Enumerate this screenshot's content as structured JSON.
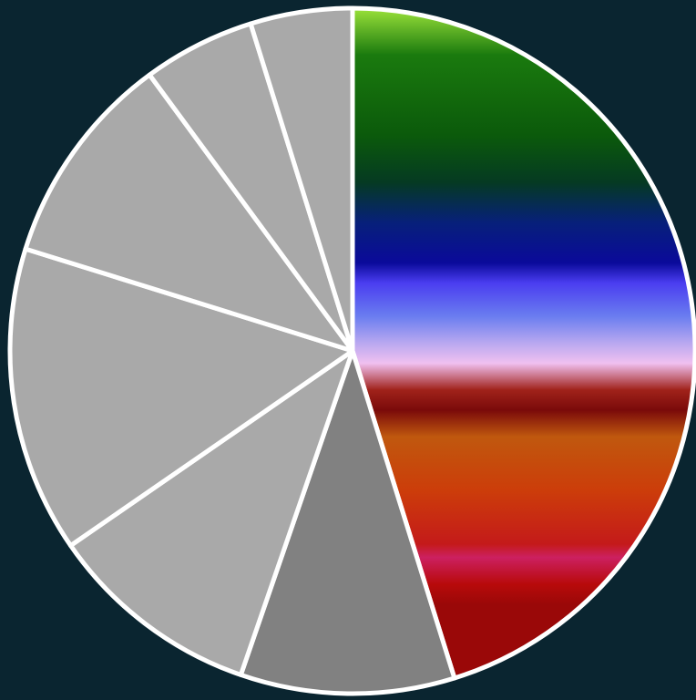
{
  "page": {
    "background": "#0a2530"
  },
  "chart_data": {
    "type": "pie",
    "title": "",
    "slice_border_color": "#ffffff",
    "start_angle_deg": 0,
    "direction": "clockwise",
    "legend": "none",
    "slices": [
      {
        "value": 47.0,
        "fill": "photo-gradient",
        "color": "#3a6f1a"
      },
      {
        "value": 10.5,
        "color": "#818181"
      },
      {
        "value": 10.5,
        "color": "#a9a9a9"
      },
      {
        "value": 15.0,
        "color": "#a9a9a9"
      },
      {
        "value": 10.5,
        "color": "#a9a9a9"
      },
      {
        "value": 5.5,
        "color": "#a9a9a9"
      },
      {
        "value": 5.0,
        "color": "#a9a9a9"
      }
    ],
    "gradient_stops": [
      {
        "offset": 0.0,
        "color": "#9be23a"
      },
      {
        "offset": 0.07,
        "color": "#1a7a0e"
      },
      {
        "offset": 0.19,
        "color": "#0b5a0b"
      },
      {
        "offset": 0.26,
        "color": "#053a22"
      },
      {
        "offset": 0.32,
        "color": "#07207a"
      },
      {
        "offset": 0.38,
        "color": "#0a0a9a"
      },
      {
        "offset": 0.41,
        "color": "#4a3df0"
      },
      {
        "offset": 0.46,
        "color": "#6a7df0"
      },
      {
        "offset": 0.5,
        "color": "#b9a8f0"
      },
      {
        "offset": 0.53,
        "color": "#f0c0f0"
      },
      {
        "offset": 0.57,
        "color": "#a0221a"
      },
      {
        "offset": 0.6,
        "color": "#7a0a0a"
      },
      {
        "offset": 0.64,
        "color": "#c0580e"
      },
      {
        "offset": 0.72,
        "color": "#cc3d0a"
      },
      {
        "offset": 0.8,
        "color": "#c41a1a"
      },
      {
        "offset": 0.82,
        "color": "#cc2060"
      },
      {
        "offset": 0.86,
        "color": "#b80a0a"
      },
      {
        "offset": 0.89,
        "color": "#9a0808"
      },
      {
        "offset": 1.0,
        "color": "#9a0808"
      }
    ]
  }
}
